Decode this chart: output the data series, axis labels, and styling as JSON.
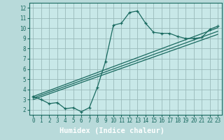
{
  "title": "",
  "xlabel": "Humidex (Indice chaleur)",
  "ylabel": "",
  "bg_color": "#b8dada",
  "plot_bg_color": "#c8e8e8",
  "footer_bg_color": "#5a9090",
  "grid_color": "#9ababa",
  "line_color": "#1a6a60",
  "xlim": [
    -0.5,
    23.5
  ],
  "ylim": [
    1.5,
    12.5
  ],
  "xticks": [
    0,
    1,
    2,
    3,
    4,
    5,
    6,
    7,
    8,
    9,
    10,
    11,
    12,
    13,
    14,
    15,
    16,
    17,
    18,
    19,
    20,
    21,
    22,
    23
  ],
  "yticks": [
    2,
    3,
    4,
    5,
    6,
    7,
    8,
    9,
    10,
    11,
    12
  ],
  "curve_x": [
    0,
    1,
    2,
    3,
    4,
    5,
    6,
    7,
    8,
    9,
    10,
    11,
    12,
    13,
    14,
    15,
    16,
    17,
    18,
    19,
    20,
    21,
    22,
    23
  ],
  "curve_y": [
    3.3,
    3.0,
    2.6,
    2.7,
    2.1,
    2.2,
    1.8,
    2.2,
    4.2,
    6.7,
    10.3,
    10.5,
    11.55,
    11.7,
    10.5,
    9.6,
    9.5,
    9.5,
    9.2,
    9.0,
    9.0,
    9.1,
    9.9,
    10.2
  ],
  "line1_x": [
    0,
    23
  ],
  "line1_y": [
    3.0,
    9.4
  ],
  "line2_x": [
    0,
    23
  ],
  "line2_y": [
    3.15,
    9.7
  ],
  "line3_x": [
    0,
    23
  ],
  "line3_y": [
    3.3,
    10.05
  ],
  "tick_fontsize": 5.5,
  "label_fontsize": 7.5
}
